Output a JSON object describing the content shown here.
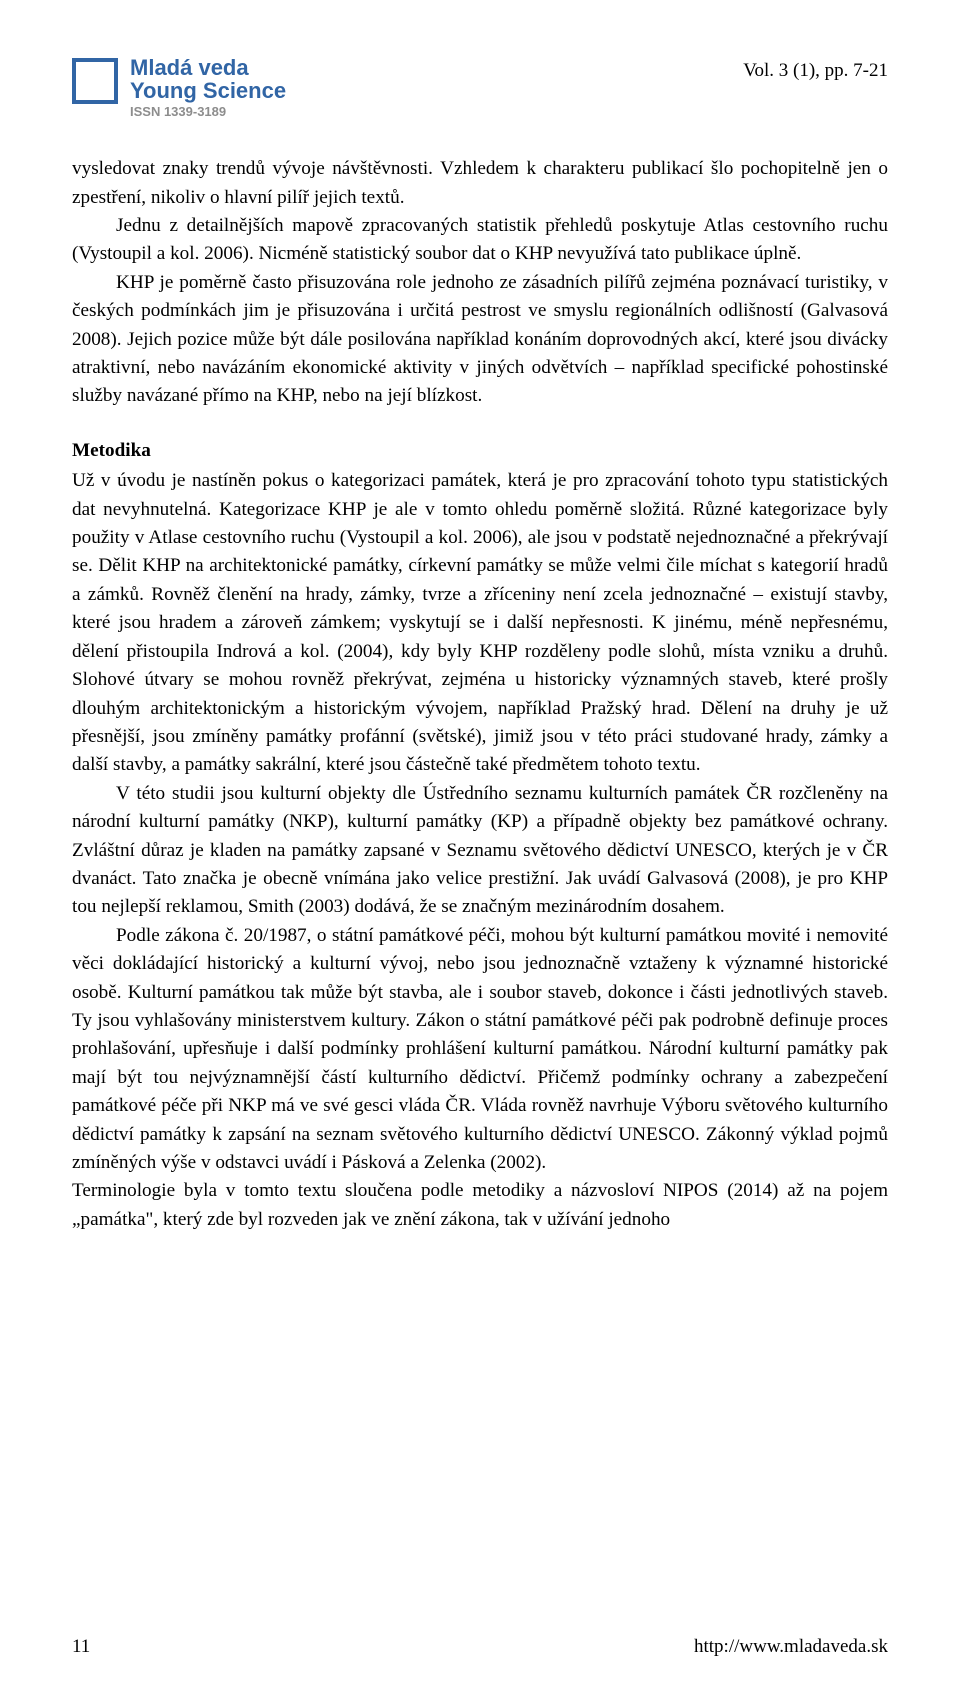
{
  "header": {
    "logo": {
      "line1": "Mladá veda",
      "line2": "Young Science",
      "issn": "ISSN 1339-3189",
      "border_color": "#3165a5",
      "text_color": "#3165a5",
      "issn_color": "#8d8d8d"
    },
    "vol_issue": "Vol. 3 (1), pp. 7-21"
  },
  "paragraphs": {
    "p1": "vysledovat znaky trendů vývoje návštěvnosti. Vzhledem k charakteru publikací šlo pochopitelně jen o zpestření, nikoliv o hlavní pilíř jejich textů.",
    "p2": "Jednu z detailnějších mapově zpracovaných statistik přehledů poskytuje Atlas cestovního ruchu (Vystoupil a kol. 2006). Nicméně statistický soubor dat o KHP nevyužívá tato publikace úplně.",
    "p3": "KHP je poměrně často přisuzována role jednoho ze zásadních pilířů zejména poznávací turistiky, v českých podmínkách jim je přisuzována i určitá pestrost ve smyslu regionálních odlišností (Galvasová 2008). Jejich pozice může být dále posilována například konáním doprovodných akcí, které jsou divácky atraktivní, nebo navázáním ekonomické aktivity v jiných odvětvích – například specifické pohostinské služby navázané přímo na KHP, nebo na její blízkost."
  },
  "section": {
    "title": "Metodika",
    "p4": "Už v úvodu je nastíněn pokus o kategorizaci památek, která je pro zpracování tohoto typu statistických dat nevyhnutelná. Kategorizace KHP je ale v tomto ohledu poměrně složitá. Různé kategorizace byly použity v Atlase cestovního ruchu (Vystoupil a kol. 2006), ale jsou v podstatě nejednoznačné a překrývají se. Dělit KHP na architektonické památky, církevní památky se může velmi čile míchat s kategorií hradů a zámků. Rovněž členění na hrady, zámky, tvrze a zříceniny není zcela jednoznačné – existují stavby, které jsou hradem a zároveň zámkem; vyskytují se i další nepřesnosti. K jinému, méně nepřesnému, dělení přistoupila Indrová a kol. (2004), kdy byly KHP rozděleny podle slohů, místa vzniku a druhů. Slohové útvary se mohou rovněž překrývat, zejména u historicky významných staveb, které prošly dlouhým architektonickým a historickým vývojem, například Pražský hrad. Dělení na druhy je už přesnější, jsou zmíněny památky profánní (světské), jimiž jsou v této práci studované hrady, zámky a další stavby, a památky sakrální, které jsou částečně také předmětem tohoto textu.",
    "p5": "V této studii jsou kulturní objekty dle Ústředního seznamu kulturních památek ČR rozčleněny na národní kulturní památky (NKP), kulturní památky (KP) a případně objekty bez památkové ochrany. Zvláštní důraz je kladen na památky zapsané v Seznamu světového dědictví UNESCO, kterých je v ČR dvanáct. Tato značka je obecně vnímána jako velice prestižní. Jak uvádí Galvasová (2008), je pro KHP tou nejlepší reklamou, Smith (2003) dodává, že se značným mezinárodním dosahem.",
    "p6": "Podle zákona č. 20/1987, o státní památkové péči, mohou být kulturní památkou movité i nemovité věci dokládající historický a kulturní vývoj, nebo jsou jednoznačně vztaženy k významné historické osobě. Kulturní památkou tak může být stavba, ale i soubor staveb, dokonce i části jednotlivých staveb. Ty jsou vyhlašovány ministerstvem kultury. Zákon o státní památkové péči pak podrobně definuje proces prohlašování, upřesňuje i další podmínky prohlášení kulturní památkou. Národní kulturní památky pak mají být tou nejvýznamnější částí kulturního dědictví. Přičemž podmínky ochrany a zabezpečení památkové péče při NKP má ve své gesci vláda ČR. Vláda rovněž navrhuje Výboru světového kulturního dědictví památky k zapsání na seznam světového kulturního dědictví UNESCO. Zákonný výklad pojmů zmíněných výše v odstavci uvádí i Pásková a Zelenka (2002).",
    "p7": "Terminologie byla v tomto textu sloučena podle metodiky a názvosloví NIPOS (2014) až na pojem „památka\", který zde byl rozveden jak ve znění zákona, tak v užívání jednoho"
  },
  "footer": {
    "page_number": "11",
    "url": "http://www.mladaveda.sk"
  },
  "typography": {
    "body_font_family": "Times New Roman",
    "body_font_size_pt": 12,
    "body_line_height": 1.48,
    "title_weight": 700,
    "text_color": "#000000",
    "background_color": "#ffffff"
  }
}
